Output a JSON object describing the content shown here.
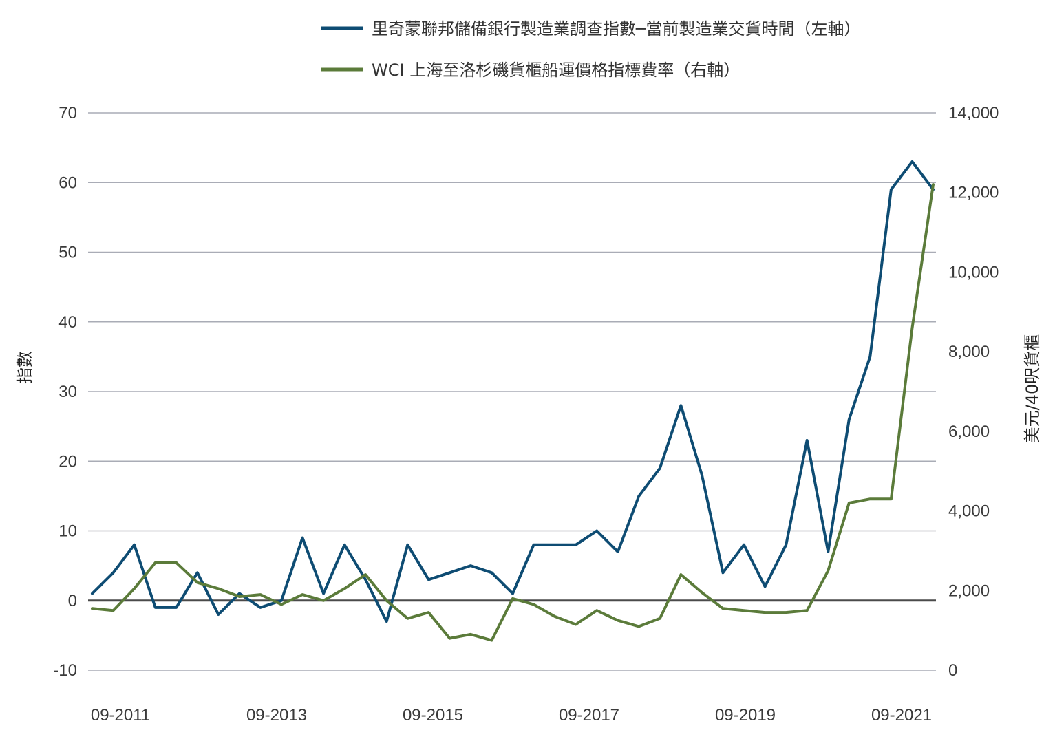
{
  "chart_data": {
    "type": "line",
    "x_labels": [
      "09-2011",
      "09-2013",
      "09-2015",
      "09-2017",
      "09-2019",
      "09-2021"
    ],
    "left_axis": {
      "title": "指數",
      "ylim": [
        -10,
        70
      ],
      "ticks": [
        "70",
        "60",
        "50",
        "40",
        "30",
        "20",
        "10",
        "0",
        "-10"
      ]
    },
    "right_axis": {
      "title": "美元/40呎貨櫃",
      "ylim": [
        0,
        14000
      ],
      "ticks": [
        "14,000",
        "12,000",
        "10,000",
        "8,000",
        "6,000",
        "4,000",
        "2,000",
        "0"
      ]
    },
    "series": [
      {
        "name": "里奇蒙聯邦儲備銀行製造業調查指數─當前製造業交貨時間（左軸）",
        "axis": "left",
        "color": "#0e4c73",
        "values": [
          1,
          4,
          8,
          -1,
          -1,
          4,
          -2,
          1,
          -1,
          0,
          9,
          1,
          8,
          3,
          -3,
          8,
          3,
          4,
          5,
          4,
          1,
          8,
          8,
          8,
          10,
          7,
          15,
          19,
          28,
          18,
          4,
          8,
          2,
          8,
          23,
          7,
          26,
          35,
          59,
          63,
          59
        ]
      },
      {
        "name": "WCI 上海至洛杉磯貨櫃船運價格指標費率（右軸）",
        "axis": "right",
        "color": "#5b7b3a",
        "values": [
          1550,
          1500,
          2050,
          2700,
          2700,
          2200,
          2050,
          1850,
          1900,
          1650,
          1900,
          1750,
          2050,
          2400,
          1750,
          1300,
          1450,
          800,
          900,
          750,
          1800,
          1650,
          1350,
          1150,
          1500,
          1250,
          1100,
          1300,
          2400,
          1950,
          1550,
          1500,
          1450,
          1450,
          1500,
          2500,
          4200,
          4300,
          4300,
          8600,
          12200
        ]
      }
    ],
    "zero_line": true,
    "grid": true,
    "legend_position": "top"
  }
}
